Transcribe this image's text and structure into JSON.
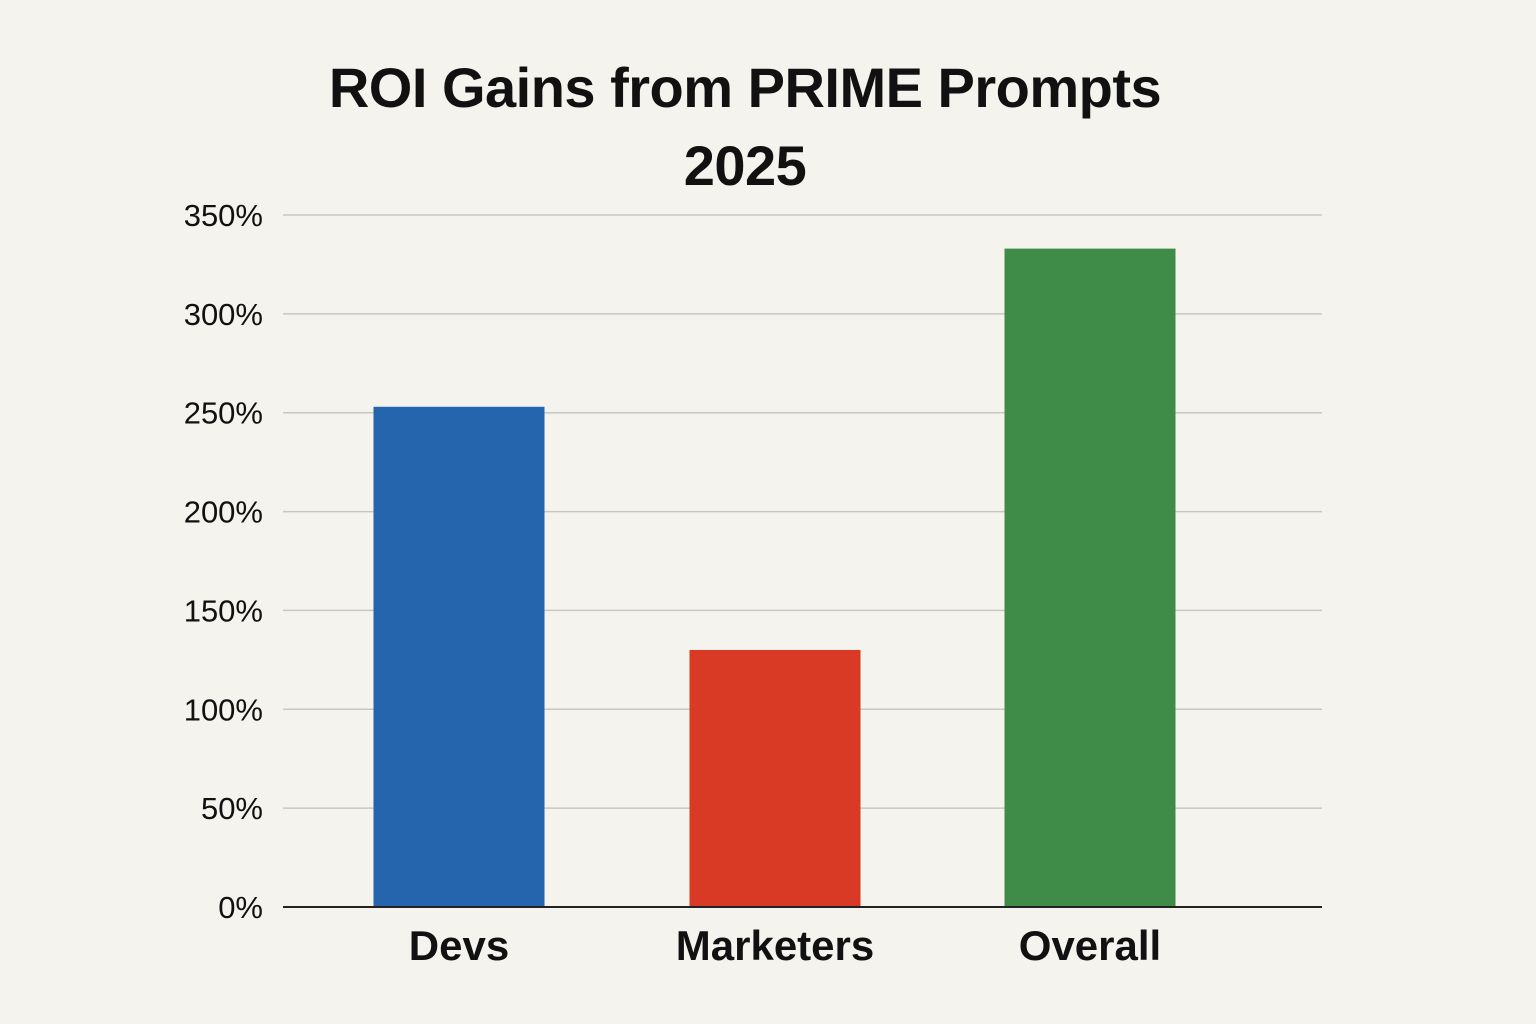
{
  "chart_data": {
    "type": "bar",
    "title": [
      "ROI Gains from PRIME Prompts",
      "2025"
    ],
    "xlabel": "",
    "ylabel": "",
    "categories": [
      "Devs",
      "Marketers",
      "Overall"
    ],
    "values": [
      253,
      130,
      333
    ],
    "colors": [
      "#2465ad",
      "#d93a26",
      "#3f8c48"
    ],
    "ylim": [
      0,
      350
    ],
    "yticks": [
      0,
      50,
      100,
      150,
      200,
      250,
      300,
      350
    ],
    "ytick_labels": [
      "0%",
      "50%",
      "100%",
      "150%",
      "200%",
      "250%",
      "300%",
      "350%"
    ],
    "grid": true,
    "legend": "none"
  }
}
